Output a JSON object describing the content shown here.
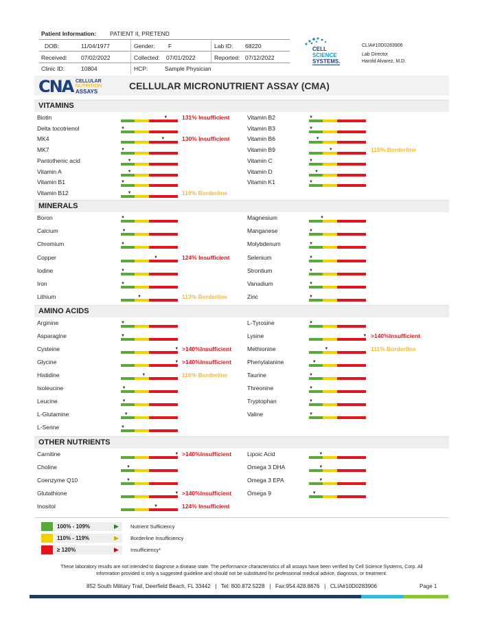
{
  "patient": {
    "info_label": "Patient Information:",
    "name": "PATIENT II, PRETEND",
    "dob_label": "DOB:",
    "dob": "11/04/1977",
    "gender_label": "Gender:",
    "gender": "F",
    "labid_label": "Lab ID:",
    "labid": "68220",
    "received_label": "Received:",
    "received": "07/02/2022",
    "collected_label": "Collected:",
    "collected": "07/01/2022",
    "reported_label": "Reported:",
    "reported": "07/12/2022",
    "clinic_label": "Clinic ID:",
    "clinic": "10804",
    "hcp_label": "HCP:",
    "hcp": "Sample Physician"
  },
  "lab": {
    "logo_line1": "CELL",
    "logo_line2": "SCIENCE",
    "logo_line3": "SYSTEMS.",
    "clia": "CLIA#10D0283906",
    "director_label": "Lab Director",
    "director": "Harold Alvarez, M.D."
  },
  "brand": {
    "mark": "CNA",
    "line1": "CELLULAR",
    "line2": "NUTRITION",
    "line3": "ASSAYS",
    "report_title": "CELLULAR MICRONUTRIENT ASSAY (CMA)"
  },
  "colors": {
    "green": "#5aa83a",
    "yellow": "#f2d100",
    "red": "#e3141b",
    "borderline_text": "#f7b733",
    "navy": "#1c3f5e"
  },
  "sections": [
    {
      "title": "VITAMINS",
      "top": 145,
      "left": [
        {
          "name": "Biotin",
          "marker": 0.78,
          "note": "131% Insufficient",
          "status": "ins"
        },
        {
          "name": "Delta tocotrienol",
          "marker": 0.0,
          "note": "",
          "status": ""
        },
        {
          "name": "MK4",
          "marker": 0.73,
          "note": "130% Insufficient",
          "status": "ins"
        },
        {
          "name": "MK7",
          "marker": 0.0,
          "note": "",
          "status": ""
        },
        {
          "name": "Pantothenic acid",
          "marker": 0.12,
          "note": "",
          "status": ""
        },
        {
          "name": "Vitamin A",
          "marker": 0.12,
          "note": "",
          "status": ""
        },
        {
          "name": "Vitamin B1",
          "marker": 0.0,
          "note": "",
          "status": ""
        },
        {
          "name": "Vitamin B12",
          "marker": 0.12,
          "note": "118% Borderline",
          "status": "bord"
        }
      ],
      "right": [
        {
          "name": "Vitamin B2",
          "marker": 0.0,
          "note": "",
          "status": ""
        },
        {
          "name": "Vitamin B3",
          "marker": 0.0,
          "note": "",
          "status": ""
        },
        {
          "name": "Vitamin B6",
          "marker": 0.12,
          "note": "",
          "status": ""
        },
        {
          "name": "Vitamin B9",
          "marker": 0.36,
          "note": "115% Borderline",
          "status": "bord"
        },
        {
          "name": "Vitamin C",
          "marker": 0.0,
          "note": "",
          "status": ""
        },
        {
          "name": "Vitamin D",
          "marker": 0.1,
          "note": "",
          "status": ""
        },
        {
          "name": "Vitamin K1",
          "marker": 0.0,
          "note": "",
          "status": ""
        }
      ]
    },
    {
      "title": "MINERALS",
      "top": 291,
      "left": [
        {
          "name": "Boron",
          "marker": 0.0,
          "note": "",
          "status": ""
        },
        {
          "name": "Calcium",
          "marker": 0.02,
          "note": "",
          "status": ""
        },
        {
          "name": "Chromium",
          "marker": 0.0,
          "note": "",
          "status": ""
        },
        {
          "name": "Copper",
          "marker": 0.6,
          "note": "124% Insufficient",
          "status": "ins"
        },
        {
          "name": "Iodine",
          "marker": 0.0,
          "note": "",
          "status": ""
        },
        {
          "name": "Iron",
          "marker": 0.0,
          "note": "",
          "status": ""
        },
        {
          "name": "Lithium",
          "marker": 0.3,
          "note": "113% Borderline",
          "status": "bord"
        }
      ],
      "right": [
        {
          "name": "Magnesium",
          "marker": 0.2,
          "note": "",
          "status": ""
        },
        {
          "name": "Manganese",
          "marker": 0.0,
          "note": "",
          "status": ""
        },
        {
          "name": "Molybdenum",
          "marker": 0.0,
          "note": "",
          "status": ""
        },
        {
          "name": "Selenium",
          "marker": 0.0,
          "note": "",
          "status": ""
        },
        {
          "name": "Strontium",
          "marker": 0.0,
          "note": "",
          "status": ""
        },
        {
          "name": "Vanadium",
          "marker": 0.0,
          "note": "",
          "status": ""
        },
        {
          "name": "Zinc",
          "marker": 0.0,
          "note": "",
          "status": ""
        }
      ]
    },
    {
      "title": "AMINO ACIDS",
      "top": 444,
      "left": [
        {
          "name": "Arginine",
          "marker": 0.0,
          "note": "",
          "status": ""
        },
        {
          "name": "Asparagine",
          "marker": 0.0,
          "note": "",
          "status": ""
        },
        {
          "name": "Cysteine",
          "marker": 0.98,
          "note": ">140%Insufficient",
          "status": "ins"
        },
        {
          "name": "Glycine",
          "marker": 0.98,
          "note": ">140%Insufficient",
          "status": "ins"
        },
        {
          "name": "Histidine",
          "marker": 0.38,
          "note": "116% Borderline",
          "status": "bord"
        },
        {
          "name": "Isoleucine",
          "marker": 0.02,
          "note": "",
          "status": ""
        },
        {
          "name": "Leucine",
          "marker": 0.02,
          "note": "",
          "status": ""
        },
        {
          "name": "L-Glutamine",
          "marker": 0.06,
          "note": "",
          "status": ""
        },
        {
          "name": "L-Serine",
          "marker": 0.0,
          "note": "",
          "status": ""
        }
      ],
      "right": [
        {
          "name": "L-Tyrosine",
          "marker": 0.0,
          "note": "",
          "status": ""
        },
        {
          "name": "Lysine",
          "marker": 0.98,
          "note": ">140%Insufficient",
          "status": "ins"
        },
        {
          "name": "Methionine",
          "marker": 0.28,
          "note": "111% Borderline",
          "status": "bord"
        },
        {
          "name": "Phenylalanine",
          "marker": 0.06,
          "note": "",
          "status": ""
        },
        {
          "name": "Taurine",
          "marker": 0.0,
          "note": "",
          "status": ""
        },
        {
          "name": "Threonine",
          "marker": 0.0,
          "note": "",
          "status": ""
        },
        {
          "name": "Tryptophan",
          "marker": 0.0,
          "note": "",
          "status": ""
        },
        {
          "name": "Valine",
          "marker": 0.0,
          "note": "",
          "status": ""
        }
      ]
    },
    {
      "title": "OTHER NUTRIENTS",
      "top": 635,
      "left": [
        {
          "name": "Carnitine",
          "marker": 0.98,
          "note": ">140%Insufficient",
          "status": "ins"
        },
        {
          "name": "Choline",
          "marker": 0.1,
          "note": "",
          "status": ""
        },
        {
          "name": "Coenzyme Q10",
          "marker": 0.1,
          "note": "",
          "status": ""
        },
        {
          "name": "Glutathione",
          "marker": 0.98,
          "note": ">140%Insufficient",
          "status": "ins"
        },
        {
          "name": "Inositol",
          "marker": 0.6,
          "note": "124% Insufficient",
          "status": "ins"
        }
      ],
      "right": [
        {
          "name": "Lipoic Acid",
          "marker": 0.18,
          "note": "",
          "status": ""
        },
        {
          "name": "Omega 3 DHA",
          "marker": 0.18,
          "note": "",
          "status": ""
        },
        {
          "name": "Omega 3 EPA",
          "marker": 0.18,
          "note": "",
          "status": ""
        },
        {
          "name": "Omega 9",
          "marker": 0.06,
          "note": "",
          "status": ""
        }
      ]
    }
  ],
  "legend": [
    {
      "range": "100% - 109%",
      "label": "Nutrient Sufficiency",
      "color": "#5aa83a",
      "arrow": "#3a7a2a"
    },
    {
      "range": "110% - 119%",
      "label": "Borderline Insufficiency",
      "color": "#f2d100",
      "arrow": "#c8b400"
    },
    {
      "range": "≥ 120%",
      "label": "Insufficiency*",
      "color": "#e3141b",
      "arrow": "#b3121a"
    }
  ],
  "disclaimer_line1": "These laboratory results are not intended to diagnose a disease state.  The performance characteristics of all assays have been verified by Cell Science Systems, Corp. All",
  "disclaimer_line2": "information provided is only a suggested guideline and should not be substituted for professional medical advice, diagnosis, or treatment.",
  "footer": {
    "address": "852 South Military Trail, Deerfield Beach, FL 33442   |   Tel: 800.872.5228   |   Fax:954.428.8676   |   CLIA#10D0283906",
    "page": "Page 1"
  }
}
